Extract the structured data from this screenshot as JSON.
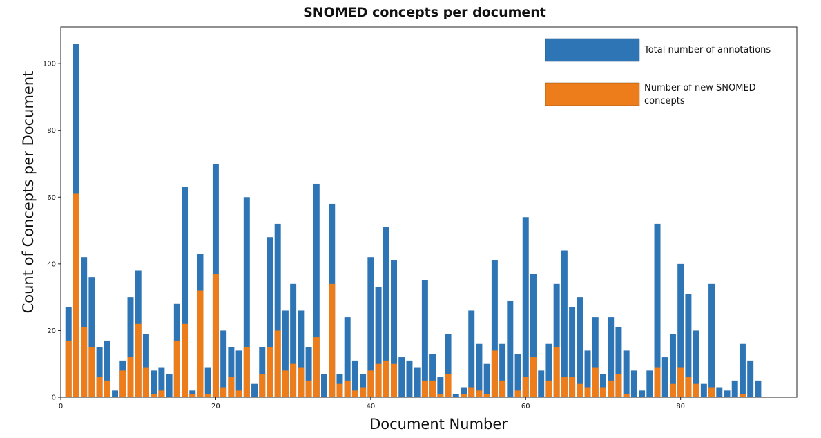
{
  "chart_data": {
    "type": "bar",
    "title": "SNOMED concepts per document",
    "xlabel": "Document Number",
    "ylabel": "Count of Concepts per Document",
    "xlim": [
      0,
      95
    ],
    "ylim": [
      0,
      111
    ],
    "xticks": [
      0,
      20,
      40,
      60,
      80
    ],
    "yticks": [
      0,
      20,
      40,
      60,
      80,
      100
    ],
    "grid": false,
    "legend_position": "top-right",
    "x": [
      1,
      2,
      3,
      4,
      5,
      6,
      7,
      8,
      9,
      10,
      11,
      12,
      13,
      14,
      15,
      16,
      17,
      18,
      19,
      20,
      21,
      22,
      23,
      24,
      25,
      26,
      27,
      28,
      29,
      30,
      31,
      32,
      33,
      34,
      35,
      36,
      37,
      38,
      39,
      40,
      41,
      42,
      43,
      44,
      45,
      46,
      47,
      48,
      49,
      50,
      51,
      52,
      53,
      54,
      55,
      56,
      57,
      58,
      59,
      60,
      61,
      62,
      63,
      64,
      65,
      66,
      67,
      68,
      69,
      70,
      71,
      72,
      73,
      74,
      75,
      76,
      77,
      78,
      79,
      80,
      81,
      82,
      83,
      84,
      85,
      86,
      87,
      88,
      89,
      90
    ],
    "series": [
      {
        "name": "Total number of annotations",
        "color": "#2e75b6",
        "values": [
          27,
          106,
          42,
          36,
          15,
          17,
          2,
          11,
          30,
          38,
          19,
          8,
          9,
          7,
          28,
          63,
          2,
          43,
          9,
          70,
          20,
          15,
          14,
          60,
          4,
          15,
          48,
          52,
          26,
          34,
          26,
          15,
          64,
          7,
          58,
          7,
          24,
          11,
          7,
          42,
          33,
          51,
          41,
          12,
          11,
          9,
          35,
          13,
          6,
          19,
          1,
          3,
          26,
          16,
          10,
          41,
          16,
          29,
          13,
          54,
          37,
          8,
          16,
          34,
          44,
          27,
          30,
          14,
          24,
          7,
          24,
          21,
          14,
          8,
          2,
          8,
          52,
          12,
          19,
          40,
          31,
          20,
          4,
          34,
          3,
          2,
          5,
          16,
          11,
          5
        ]
      },
      {
        "name": "Number of new SNOMED concepts",
        "color": "#ed7d1a",
        "values": [
          17,
          61,
          21,
          15,
          6,
          5,
          0,
          8,
          12,
          22,
          9,
          1,
          2,
          0,
          17,
          22,
          1,
          32,
          1,
          37,
          3,
          6,
          2,
          15,
          0,
          7,
          15,
          20,
          8,
          10,
          9,
          5,
          18,
          0,
          34,
          4,
          5,
          2,
          3,
          8,
          10,
          11,
          10,
          0,
          0,
          0,
          5,
          5,
          1,
          7,
          0,
          1,
          3,
          2,
          1,
          14,
          5,
          0,
          2,
          6,
          12,
          0,
          5,
          15,
          6,
          6,
          4,
          3,
          9,
          3,
          5,
          7,
          1,
          0,
          0,
          0,
          9,
          0,
          4,
          9,
          6,
          4,
          0,
          3,
          0,
          0,
          0,
          1,
          0,
          0
        ]
      }
    ]
  }
}
